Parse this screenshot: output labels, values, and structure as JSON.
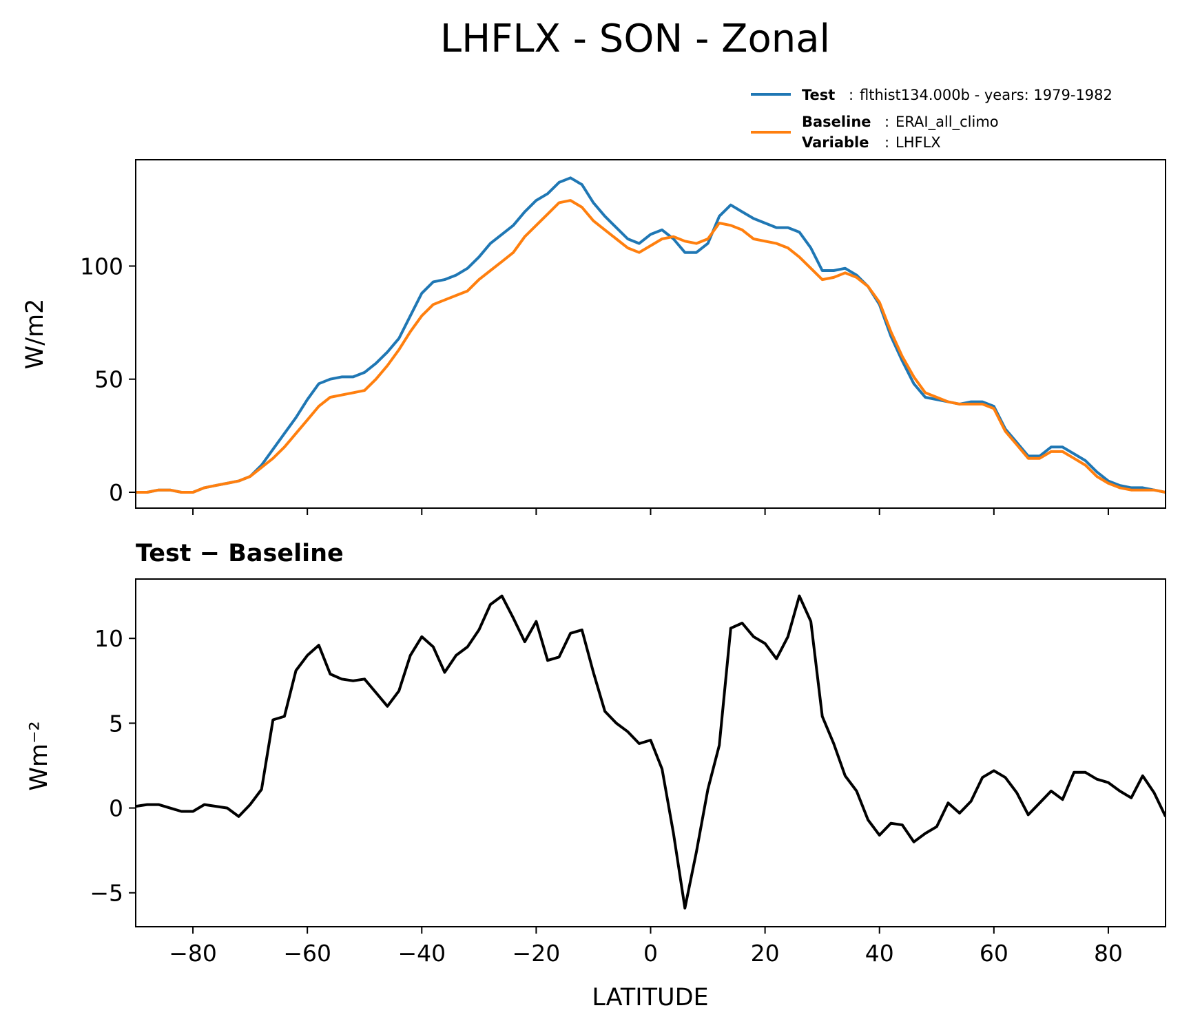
{
  "chart_data": [
    {
      "type": "line",
      "title": "LHFLX - SON - Zonal",
      "ylabel": "W/m2",
      "xlim": [
        -90,
        90
      ],
      "ylim": [
        -7,
        147
      ],
      "xticks": [
        -80,
        -60,
        -40,
        -20,
        0,
        20,
        40,
        60,
        80
      ],
      "yticks": [
        0,
        50,
        100
      ],
      "ytick_labels": [
        "0",
        "50",
        "100"
      ],
      "legend": {
        "placement": "top-right",
        "entries": [
          {
            "key": "Test",
            "sep": ":",
            "text": "flthist134.000b - years: 1979-1982"
          },
          {
            "key": "Baseline",
            "sep": ":",
            "text": "ERAI_all_climo"
          },
          {
            "key": "Variable",
            "sep": ":",
            "text": "LHFLX"
          }
        ]
      },
      "x": [
        -90,
        -88,
        -86,
        -84,
        -82,
        -80,
        -78,
        -76,
        -74,
        -72,
        -70,
        -68,
        -66,
        -64,
        -62,
        -60,
        -58,
        -56,
        -54,
        -52,
        -50,
        -48,
        -46,
        -44,
        -42,
        -40,
        -38,
        -36,
        -34,
        -32,
        -30,
        -28,
        -26,
        -24,
        -22,
        -20,
        -18,
        -16,
        -14,
        -12,
        -10,
        -8,
        -6,
        -4,
        -2,
        0,
        2,
        4,
        6,
        8,
        10,
        12,
        14,
        16,
        18,
        20,
        22,
        24,
        26,
        28,
        30,
        32,
        34,
        36,
        38,
        40,
        42,
        44,
        46,
        48,
        50,
        52,
        54,
        56,
        58,
        60,
        62,
        64,
        66,
        68,
        70,
        72,
        74,
        76,
        78,
        80,
        82,
        84,
        86,
        88,
        90
      ],
      "series": [
        {
          "name": "Test",
          "color": "#1f77b4",
          "values": [
            0,
            0,
            1,
            1,
            0,
            0,
            2,
            3,
            4,
            5,
            7,
            12,
            19,
            26,
            33,
            41,
            48,
            50,
            51,
            51,
            53,
            57,
            62,
            68,
            78,
            88,
            93,
            94,
            96,
            99,
            104,
            110,
            114,
            118,
            124,
            129,
            132,
            137,
            139,
            136,
            128,
            122,
            117,
            112,
            110,
            114,
            116,
            112,
            106,
            106,
            110,
            122,
            127,
            124,
            121,
            119,
            117,
            117,
            115,
            108,
            98,
            98,
            99,
            96,
            91,
            83,
            69,
            58,
            48,
            42,
            41,
            40,
            39,
            40,
            40,
            38,
            28,
            22,
            16,
            16,
            20,
            20,
            17,
            14,
            9,
            5,
            3,
            2,
            2,
            1,
            0
          ]
        },
        {
          "name": "Baseline",
          "color": "#ff7f0e",
          "values": [
            0,
            0,
            1,
            1,
            0,
            0,
            2,
            3,
            4,
            5,
            7,
            11,
            15,
            20,
            26,
            32,
            38,
            42,
            43,
            44,
            45,
            50,
            56,
            63,
            71,
            78,
            83,
            85,
            87,
            89,
            94,
            98,
            102,
            106,
            113,
            118,
            123,
            128,
            129,
            126,
            120,
            116,
            112,
            108,
            106,
            109,
            112,
            113,
            111,
            110,
            112,
            119,
            118,
            116,
            112,
            111,
            110,
            108,
            104,
            99,
            94,
            95,
            97,
            95,
            91,
            84,
            71,
            60,
            51,
            44,
            42,
            40,
            39,
            39,
            39,
            37,
            27,
            21,
            15,
            15,
            18,
            18,
            15,
            12,
            7,
            4,
            2,
            1,
            1,
            1,
            0
          ]
        }
      ]
    },
    {
      "type": "line",
      "title": "Test − Baseline",
      "xlabel": "LATITUDE",
      "ylabel": "Wm⁻²",
      "xlim": [
        -90,
        90
      ],
      "ylim": [
        -7,
        13.5
      ],
      "xticks": [
        -80,
        -60,
        -40,
        -20,
        0,
        20,
        40,
        60,
        80
      ],
      "xtick_labels": [
        "−80",
        "−60",
        "−40",
        "−20",
        "0",
        "20",
        "40",
        "60",
        "80"
      ],
      "yticks": [
        -5,
        0,
        5,
        10
      ],
      "ytick_labels": [
        "−5",
        "0",
        "5",
        "10"
      ],
      "x": [
        -90,
        -88,
        -86,
        -84,
        -82,
        -80,
        -78,
        -76,
        -74,
        -72,
        -70,
        -68,
        -66,
        -64,
        -62,
        -60,
        -58,
        -56,
        -54,
        -52,
        -50,
        -48,
        -46,
        -44,
        -42,
        -40,
        -38,
        -36,
        -34,
        -32,
        -30,
        -28,
        -26,
        -24,
        -22,
        -20,
        -18,
        -16,
        -14,
        -12,
        -10,
        -8,
        -6,
        -4,
        -2,
        0,
        2,
        4,
        6,
        8,
        10,
        12,
        14,
        16,
        18,
        20,
        22,
        24,
        26,
        28,
        30,
        32,
        34,
        36,
        38,
        40,
        42,
        44,
        46,
        48,
        50,
        52,
        54,
        56,
        58,
        60,
        62,
        64,
        66,
        68,
        70,
        72,
        74,
        76,
        78,
        80,
        82,
        84,
        86,
        88,
        90
      ],
      "series": [
        {
          "color": "#000000",
          "values": [
            0.1,
            0.2,
            0.2,
            0.0,
            -0.2,
            -0.2,
            0.2,
            0.1,
            0.0,
            -0.5,
            0.2,
            1.1,
            5.2,
            5.4,
            8.1,
            9.0,
            9.6,
            7.9,
            7.6,
            7.5,
            7.6,
            6.8,
            6.0,
            6.9,
            9.0,
            10.1,
            9.5,
            8.0,
            9.0,
            9.5,
            10.5,
            12.0,
            12.5,
            11.2,
            9.8,
            11.0,
            8.7,
            8.9,
            10.3,
            10.5,
            8.0,
            5.7,
            5.0,
            4.5,
            3.8,
            4.0,
            2.3,
            -1.5,
            -5.9,
            -2.6,
            1.1,
            3.7,
            10.6,
            10.9,
            10.1,
            9.7,
            8.8,
            10.1,
            12.5,
            11.0,
            5.4,
            3.8,
            1.9,
            1.0,
            -0.7,
            -1.6,
            -0.9,
            -1.0,
            -2.0,
            -1.5,
            -1.1,
            0.3,
            -0.3,
            0.4,
            1.8,
            2.2,
            1.8,
            0.9,
            -0.4,
            0.3,
            1.0,
            0.5,
            2.1,
            2.1,
            1.7,
            1.5,
            1.0,
            0.6,
            1.9,
            0.9,
            -0.5
          ]
        }
      ]
    }
  ]
}
